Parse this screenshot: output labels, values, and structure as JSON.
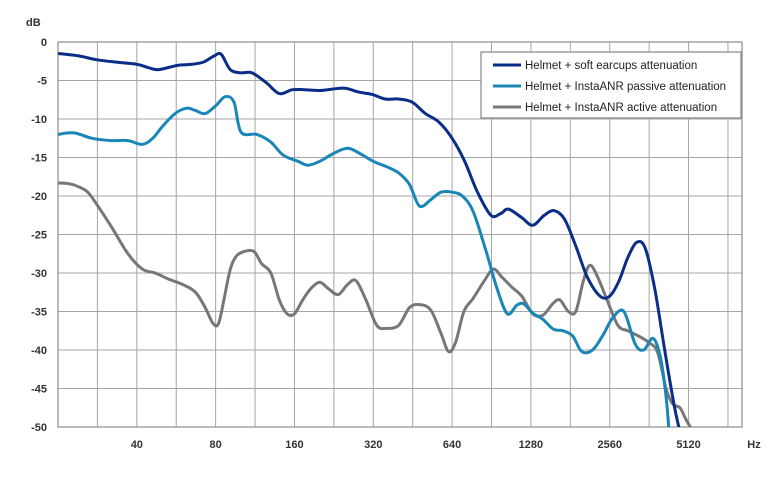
{
  "chart_data": {
    "type": "line",
    "title": "",
    "ylabel": "dB",
    "xlabel": "Hz",
    "xscale": "log2",
    "xlim": [
      20,
      8192
    ],
    "ylim": [
      -50,
      0
    ],
    "yticks": [
      0,
      -5,
      -10,
      -15,
      -20,
      -25,
      -30,
      -35,
      -40,
      -45,
      -50
    ],
    "xticks": [
      40,
      80,
      160,
      320,
      640,
      1280,
      2560,
      5120
    ],
    "grid": true,
    "legend_position": "top-right",
    "series": [
      {
        "name": "Helmet + soft earcups attenuation",
        "color": "#0a2d87",
        "points": [
          [
            20,
            -1.5
          ],
          [
            24,
            -1.8
          ],
          [
            28,
            -2.3
          ],
          [
            33,
            -2.6
          ],
          [
            40,
            -2.9
          ],
          [
            44,
            -3.3
          ],
          [
            48,
            -3.6
          ],
          [
            53,
            -3.3
          ],
          [
            58,
            -3.0
          ],
          [
            65,
            -2.9
          ],
          [
            72,
            -2.6
          ],
          [
            79,
            -1.8
          ],
          [
            84,
            -1.6
          ],
          [
            91,
            -3.6
          ],
          [
            100,
            -4.0
          ],
          [
            110,
            -4.0
          ],
          [
            125,
            -5.3
          ],
          [
            140,
            -6.7
          ],
          [
            157,
            -6.2
          ],
          [
            175,
            -6.2
          ],
          [
            200,
            -6.3
          ],
          [
            225,
            -6.1
          ],
          [
            250,
            -6.0
          ],
          [
            282,
            -6.5
          ],
          [
            317,
            -6.8
          ],
          [
            355,
            -7.4
          ],
          [
            400,
            -7.4
          ],
          [
            450,
            -7.8
          ],
          [
            506,
            -9.3
          ],
          [
            570,
            -10.4
          ],
          [
            640,
            -12.5
          ],
          [
            715,
            -15.5
          ],
          [
            800,
            -19.5
          ],
          [
            900,
            -22.5
          ],
          [
            980,
            -22.3
          ],
          [
            1050,
            -21.7
          ],
          [
            1180,
            -22.8
          ],
          [
            1300,
            -23.8
          ],
          [
            1440,
            -22.5
          ],
          [
            1570,
            -21.9
          ],
          [
            1720,
            -23.0
          ],
          [
            1900,
            -26.5
          ],
          [
            2100,
            -30.5
          ],
          [
            2350,
            -33.0
          ],
          [
            2560,
            -33.0
          ],
          [
            2780,
            -31.0
          ],
          [
            3000,
            -28.0
          ],
          [
            3250,
            -26.0
          ],
          [
            3500,
            -26.8
          ],
          [
            3800,
            -32.0
          ],
          [
            4150,
            -40.0
          ],
          [
            4500,
            -47.0
          ],
          [
            4700,
            -50.0
          ]
        ]
      },
      {
        "name": "Helmet + InstaANR passive attenuation",
        "color": "#1a86b8",
        "points": [
          [
            20,
            -12.0
          ],
          [
            23,
            -11.8
          ],
          [
            27,
            -12.5
          ],
          [
            32,
            -12.8
          ],
          [
            37,
            -12.8
          ],
          [
            42,
            -13.3
          ],
          [
            46,
            -12.5
          ],
          [
            50,
            -11.0
          ],
          [
            56,
            -9.3
          ],
          [
            62,
            -8.6
          ],
          [
            67,
            -8.9
          ],
          [
            73,
            -9.3
          ],
          [
            80,
            -8.3
          ],
          [
            87,
            -7.1
          ],
          [
            94,
            -7.8
          ],
          [
            100,
            -11.7
          ],
          [
            115,
            -12.0
          ],
          [
            130,
            -13.0
          ],
          [
            145,
            -14.7
          ],
          [
            165,
            -15.5
          ],
          [
            180,
            -16.0
          ],
          [
            200,
            -15.5
          ],
          [
            225,
            -14.5
          ],
          [
            255,
            -13.8
          ],
          [
            285,
            -14.5
          ],
          [
            320,
            -15.5
          ],
          [
            360,
            -16.2
          ],
          [
            400,
            -17.0
          ],
          [
            440,
            -18.5
          ],
          [
            480,
            -21.3
          ],
          [
            530,
            -20.5
          ],
          [
            580,
            -19.5
          ],
          [
            640,
            -19.5
          ],
          [
            700,
            -20.0
          ],
          [
            770,
            -22.0
          ],
          [
            860,
            -27.0
          ],
          [
            950,
            -32.0
          ],
          [
            1040,
            -35.3
          ],
          [
            1130,
            -34.2
          ],
          [
            1200,
            -34.0
          ],
          [
            1300,
            -35.2
          ],
          [
            1420,
            -36.0
          ],
          [
            1560,
            -37.3
          ],
          [
            1700,
            -37.5
          ],
          [
            1850,
            -38.2
          ],
          [
            2000,
            -40.2
          ],
          [
            2200,
            -40.0
          ],
          [
            2400,
            -38.2
          ],
          [
            2630,
            -35.8
          ],
          [
            2900,
            -35.0
          ],
          [
            3200,
            -39.2
          ],
          [
            3450,
            -40.0
          ],
          [
            3750,
            -38.5
          ],
          [
            4000,
            -41.0
          ],
          [
            4200,
            -46.0
          ],
          [
            4300,
            -50.0
          ]
        ]
      },
      {
        "name": "Helmet + InstaANR active attenuation",
        "color": "#777777",
        "points": [
          [
            20,
            -18.3
          ],
          [
            22,
            -18.4
          ],
          [
            24,
            -18.8
          ],
          [
            26,
            -19.5
          ],
          [
            28,
            -21.0
          ],
          [
            32,
            -24.0
          ],
          [
            37,
            -27.5
          ],
          [
            42,
            -29.5
          ],
          [
            47,
            -30.0
          ],
          [
            53,
            -30.8
          ],
          [
            60,
            -31.5
          ],
          [
            67,
            -32.5
          ],
          [
            73,
            -34.5
          ],
          [
            78,
            -36.5
          ],
          [
            82,
            -36.6
          ],
          [
            86,
            -33.5
          ],
          [
            91,
            -29.5
          ],
          [
            96,
            -27.8
          ],
          [
            103,
            -27.2
          ],
          [
            112,
            -27.2
          ],
          [
            120,
            -28.8
          ],
          [
            130,
            -30.0
          ],
          [
            140,
            -33.5
          ],
          [
            150,
            -35.3
          ],
          [
            160,
            -35.3
          ],
          [
            172,
            -33.5
          ],
          [
            185,
            -32.0
          ],
          [
            200,
            -31.2
          ],
          [
            215,
            -32.0
          ],
          [
            235,
            -32.8
          ],
          [
            255,
            -31.5
          ],
          [
            275,
            -31.0
          ],
          [
            300,
            -33.5
          ],
          [
            330,
            -36.8
          ],
          [
            360,
            -37.2
          ],
          [
            400,
            -36.8
          ],
          [
            440,
            -34.5
          ],
          [
            480,
            -34.1
          ],
          [
            530,
            -34.8
          ],
          [
            580,
            -37.8
          ],
          [
            620,
            -40.2
          ],
          [
            660,
            -39.0
          ],
          [
            710,
            -35.0
          ],
          [
            770,
            -33.3
          ],
          [
            850,
            -31.0
          ],
          [
            920,
            -29.5
          ],
          [
            990,
            -30.5
          ],
          [
            1080,
            -31.8
          ],
          [
            1180,
            -33.0
          ],
          [
            1300,
            -35.3
          ],
          [
            1420,
            -35.5
          ],
          [
            1550,
            -34.0
          ],
          [
            1650,
            -33.5
          ],
          [
            1780,
            -35.0
          ],
          [
            1900,
            -35.0
          ],
          [
            2030,
            -31.0
          ],
          [
            2150,
            -29.0
          ],
          [
            2300,
            -30.5
          ],
          [
            2500,
            -33.5
          ],
          [
            2750,
            -36.8
          ],
          [
            3000,
            -37.5
          ],
          [
            3300,
            -38.2
          ],
          [
            3600,
            -39.0
          ],
          [
            3900,
            -40.3
          ],
          [
            4200,
            -45.0
          ],
          [
            4450,
            -47.0
          ],
          [
            4750,
            -47.5
          ],
          [
            5000,
            -49.0
          ],
          [
            5200,
            -50.0
          ]
        ]
      }
    ]
  }
}
